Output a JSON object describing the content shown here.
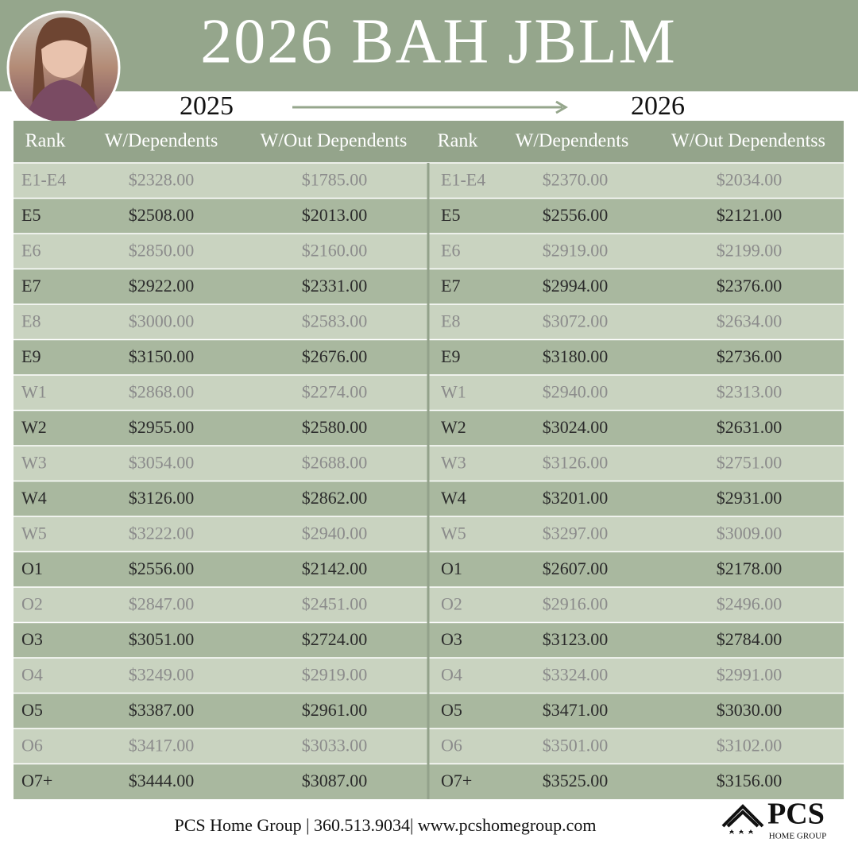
{
  "header": {
    "title": "2026 BAH JBLM",
    "year_from": "2025",
    "year_to": "2026"
  },
  "table": {
    "headers": [
      "Rank",
      "W/Dependents",
      "W/Out Dependents",
      "Rank",
      "W/Dependents",
      "W/Out Dependentss"
    ],
    "rows": [
      [
        "E1-E4",
        "$2328.00",
        "$1785.00",
        "E1-E4",
        "$2370.00",
        "$2034.00"
      ],
      [
        "E5",
        "$2508.00",
        "$2013.00",
        "E5",
        "$2556.00",
        "$2121.00"
      ],
      [
        "E6",
        "$2850.00",
        "$2160.00",
        "E6",
        "$2919.00",
        "$2199.00"
      ],
      [
        "E7",
        "$2922.00",
        "$2331.00",
        "E7",
        "$2994.00",
        "$2376.00"
      ],
      [
        "E8",
        "$3000.00",
        "$2583.00",
        "E8",
        "$3072.00",
        "$2634.00"
      ],
      [
        "E9",
        "$3150.00",
        "$2676.00",
        "E9",
        "$3180.00",
        "$2736.00"
      ],
      [
        "W1",
        "$2868.00",
        "$2274.00",
        "W1",
        "$2940.00",
        "$2313.00"
      ],
      [
        "W2",
        "$2955.00",
        "$2580.00",
        "W2",
        "$3024.00",
        "$2631.00"
      ],
      [
        "W3",
        "$3054.00",
        "$2688.00",
        "W3",
        "$3126.00",
        "$2751.00"
      ],
      [
        "W4",
        "$3126.00",
        "$2862.00",
        "W4",
        "$3201.00",
        "$2931.00"
      ],
      [
        "W5",
        "$3222.00",
        "$2940.00",
        "W5",
        "$3297.00",
        "$3009.00"
      ],
      [
        "O1",
        "$2556.00",
        "$2142.00",
        "O1",
        "$2607.00",
        "$2178.00"
      ],
      [
        "O2",
        "$2847.00",
        "$2451.00",
        "O2",
        "$2916.00",
        "$2496.00"
      ],
      [
        "O3",
        "$3051.00",
        "$2724.00",
        "O3",
        "$3123.00",
        "$2784.00"
      ],
      [
        "O4",
        "$3249.00",
        "$2919.00",
        "O4",
        "$3324.00",
        "$2991.00"
      ],
      [
        "O5",
        "$3387.00",
        "$2961.00",
        "O5",
        "$3471.00",
        "$3030.00"
      ],
      [
        "O6",
        "$3417.00",
        "$3033.00",
        "O6",
        "$3501.00",
        "$3102.00"
      ],
      [
        "O7+",
        "$3444.00",
        "$3087.00",
        "O7+",
        "$3525.00",
        "$3156.00"
      ]
    ]
  },
  "footer": {
    "contact": "PCS Home Group | 360.513.9034| www.pcshomegroup.com",
    "logo_name": "PCS",
    "logo_sub": "HOME GROUP"
  }
}
